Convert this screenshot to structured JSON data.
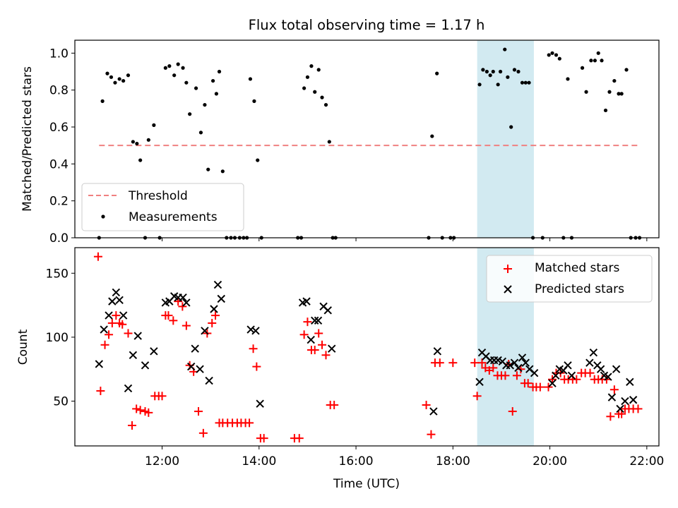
{
  "title": "Flux total observing time = 1.17 h",
  "colors": {
    "threshold": "#f08080",
    "measurement": "#000000",
    "matched": "#ff0000",
    "predicted": "#000000",
    "highlight": "#add8e6"
  },
  "chart_data": [
    {
      "type": "scatter",
      "ylabel": "Matched/Predicted stars",
      "xlim": [
        10.2,
        22.25
      ],
      "ylim": [
        0,
        1.07
      ],
      "yticks": [
        0,
        0.2,
        0.4,
        0.6,
        0.8,
        1.0
      ],
      "ytick_labels": [
        "0.0",
        "0.2",
        "0.4",
        "0.6",
        "0.8",
        "1.0"
      ],
      "highlight_x": [
        18.5,
        19.67
      ],
      "grid": false,
      "legend": {
        "position": "lower-left",
        "entries": [
          "Threshold",
          "Measurements"
        ]
      },
      "threshold": {
        "name": "Threshold",
        "value": 0.5,
        "x": [
          10.7,
          21.85
        ]
      },
      "series": [
        {
          "name": "Measurements",
          "x": [
            10.7,
            10.77,
            10.87,
            10.95,
            11.03,
            11.12,
            11.2,
            11.3,
            11.4,
            11.48,
            11.55,
            11.65,
            11.72,
            11.83,
            11.95,
            12.07,
            12.15,
            12.25,
            12.33,
            12.43,
            12.5,
            12.57,
            12.7,
            12.8,
            12.88,
            12.95,
            13.05,
            13.12,
            13.18,
            13.25,
            13.33,
            13.42,
            13.5,
            13.6,
            13.68,
            13.75,
            13.82,
            13.9,
            13.97,
            14.05,
            14.8,
            14.87,
            14.93,
            15.0,
            15.08,
            15.15,
            15.23,
            15.3,
            15.38,
            15.45,
            15.52,
            15.58,
            17.5,
            17.57,
            17.67,
            17.78,
            17.95,
            18.02,
            18.55,
            18.62,
            18.7,
            18.77,
            18.83,
            18.93,
            18.98,
            19.07,
            19.13,
            19.2,
            19.27,
            19.35,
            19.43,
            19.5,
            19.57,
            19.65,
            19.85,
            19.98,
            20.05,
            20.13,
            20.2,
            20.28,
            20.37,
            20.45,
            20.67,
            20.75,
            20.85,
            20.93,
            21.0,
            21.07,
            21.15,
            21.23,
            21.33,
            21.42,
            21.48,
            21.58,
            21.67,
            21.77,
            21.85
          ],
          "y": [
            0.0,
            0.74,
            0.89,
            0.87,
            0.84,
            0.86,
            0.85,
            0.88,
            0.52,
            0.51,
            0.42,
            0.0,
            0.53,
            0.61,
            0.0,
            0.92,
            0.93,
            0.88,
            0.94,
            0.92,
            0.84,
            0.67,
            0.81,
            0.57,
            0.72,
            0.37,
            0.85,
            0.78,
            0.9,
            0.36,
            0.0,
            0.0,
            0.0,
            0.0,
            0.0,
            0.0,
            0.86,
            0.74,
            0.42,
            0.0,
            0.0,
            0.0,
            0.81,
            0.87,
            0.93,
            0.79,
            0.91,
            0.76,
            0.72,
            0.52,
            0.0,
            0.0,
            0.0,
            0.55,
            0.89,
            0.0,
            0.0,
            0.0,
            0.83,
            0.91,
            0.9,
            0.88,
            0.9,
            0.83,
            0.9,
            1.02,
            0.87,
            0.6,
            0.91,
            0.9,
            0.84,
            0.84,
            0.84,
            0.0,
            0.0,
            0.99,
            1.0,
            0.99,
            0.97,
            0.0,
            0.86,
            0.0,
            0.92,
            0.79,
            0.96,
            0.96,
            1.0,
            0.96,
            0.69,
            0.79,
            0.85,
            0.78,
            0.78,
            0.91,
            0.0,
            0.0,
            0.0
          ]
        }
      ]
    },
    {
      "type": "scatter",
      "xlabel": "Time (UTC)",
      "ylabel": "Count",
      "xlim": [
        10.2,
        22.25
      ],
      "ylim": [
        15,
        170
      ],
      "yticks": [
        50,
        100,
        150
      ],
      "ytick_labels": [
        "50",
        "100",
        "150"
      ],
      "xticks": [
        12,
        14,
        16,
        18,
        20,
        22
      ],
      "xtick_labels": [
        "12:00",
        "14:00",
        "16:00",
        "18:00",
        "20:00",
        "22:00"
      ],
      "highlight_x": [
        18.5,
        19.67
      ],
      "grid": false,
      "legend": {
        "position": "top-right",
        "entries": [
          "Matched stars",
          "Predicted stars"
        ]
      },
      "series": [
        {
          "name": "Matched stars",
          "marker": "plus",
          "x": [
            10.68,
            10.73,
            10.82,
            10.9,
            10.97,
            11.05,
            11.12,
            11.18,
            11.3,
            11.38,
            11.47,
            11.55,
            11.65,
            11.72,
            11.85,
            11.93,
            12.0,
            12.07,
            12.13,
            12.23,
            12.33,
            12.42,
            12.5,
            12.57,
            12.65,
            12.75,
            12.85,
            12.93,
            13.03,
            13.1,
            13.18,
            13.25,
            13.35,
            13.45,
            13.55,
            13.63,
            13.72,
            13.8,
            13.88,
            13.95,
            14.03,
            14.1,
            14.73,
            14.83,
            14.93,
            15.0,
            15.08,
            15.15,
            15.23,
            15.3,
            15.38,
            15.47,
            15.55,
            17.45,
            17.55,
            17.63,
            17.73,
            18.0,
            18.45,
            18.5,
            18.6,
            18.67,
            18.75,
            18.83,
            18.92,
            19.0,
            19.08,
            19.15,
            19.23,
            19.32,
            19.4,
            19.48,
            19.55,
            19.65,
            19.72,
            19.8,
            19.97,
            20.05,
            20.13,
            20.22,
            20.3,
            20.38,
            20.47,
            20.55,
            20.65,
            20.73,
            20.83,
            20.92,
            21.0,
            21.08,
            21.17,
            21.25,
            21.33,
            21.42,
            21.48,
            21.55,
            21.63,
            21.72,
            21.82
          ],
          "y": [
            163,
            58,
            94,
            102,
            111,
            117,
            111,
            110,
            103,
            31,
            44,
            43,
            42,
            41,
            54,
            54,
            54,
            117,
            117,
            113,
            128,
            124,
            109,
            78,
            73,
            42,
            25,
            103,
            111,
            117,
            33,
            33,
            33,
            33,
            33,
            33,
            33,
            33,
            91,
            77,
            21,
            21,
            21,
            21,
            102,
            112,
            90,
            90,
            103,
            94,
            86,
            47,
            47,
            47,
            24,
            80,
            80,
            80,
            80,
            54,
            80,
            76,
            74,
            76,
            70,
            70,
            70,
            79,
            42,
            70,
            75,
            64,
            64,
            61,
            61,
            61,
            61,
            67,
            72,
            72,
            67,
            67,
            67,
            67,
            72,
            72,
            72,
            67,
            67,
            67,
            67,
            38,
            59,
            40,
            40,
            44,
            44,
            44,
            44
          ]
        },
        {
          "name": "Predicted stars",
          "marker": "x",
          "x": [
            10.7,
            10.8,
            10.9,
            10.97,
            11.05,
            11.12,
            11.2,
            11.3,
            11.4,
            11.5,
            11.65,
            11.83,
            12.07,
            12.15,
            12.25,
            12.33,
            12.43,
            12.5,
            12.6,
            12.68,
            12.78,
            12.88,
            12.97,
            13.07,
            13.15,
            13.22,
            13.83,
            13.93,
            14.02,
            14.9,
            14.98,
            15.07,
            15.15,
            15.22,
            15.33,
            15.42,
            15.5,
            17.6,
            17.68,
            18.55,
            18.6,
            18.68,
            18.77,
            18.85,
            18.93,
            19.02,
            19.1,
            19.18,
            19.27,
            19.35,
            19.43,
            19.5,
            19.58,
            19.68,
            20.05,
            20.12,
            20.2,
            20.28,
            20.37,
            20.45,
            20.82,
            20.9,
            20.98,
            21.05,
            21.12,
            21.2,
            21.28,
            21.37,
            21.45,
            21.55,
            21.65,
            21.72
          ],
          "y": [
            79,
            106,
            117,
            128,
            135,
            129,
            117,
            60,
            86,
            101,
            78,
            89,
            127,
            128,
            132,
            131,
            131,
            127,
            77,
            91,
            75,
            105,
            66,
            122,
            141,
            130,
            106,
            105,
            48,
            127,
            128,
            98,
            113,
            113,
            124,
            121,
            91,
            42,
            89,
            65,
            88,
            85,
            82,
            82,
            82,
            81,
            78,
            78,
            80,
            76,
            84,
            80,
            75,
            72,
            64,
            70,
            75,
            74,
            78,
            70,
            80,
            88,
            78,
            75,
            70,
            69,
            53,
            75,
            44,
            50,
            65,
            51
          ]
        }
      ]
    }
  ]
}
